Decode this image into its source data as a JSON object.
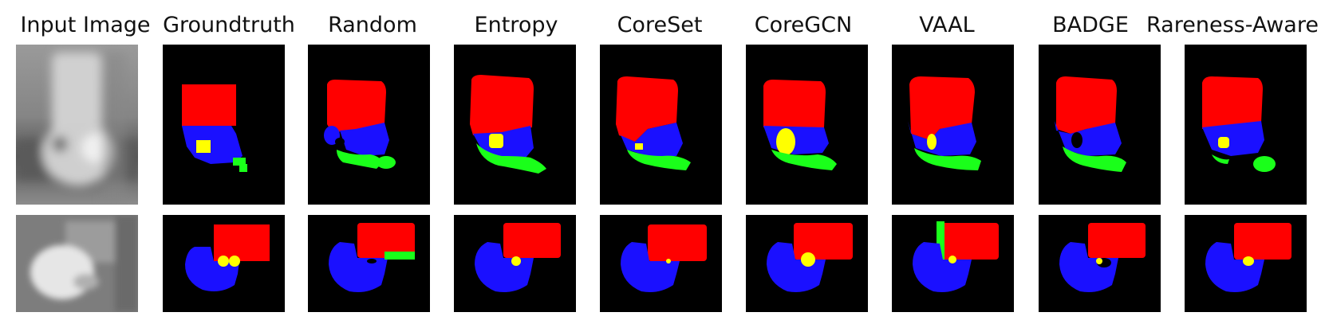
{
  "columns": [
    "Input Image",
    "Groundtruth",
    "Random",
    "Entropy",
    "CoreSet",
    "CoreGCN",
    "VAAL",
    "BADGE",
    "Rareness-Aware"
  ],
  "colors": {
    "background": "#000000",
    "class_red": "#ff0000",
    "class_blue": "#1a10ff",
    "class_green": "#1aff1a",
    "class_yellow": "#ffff00"
  }
}
